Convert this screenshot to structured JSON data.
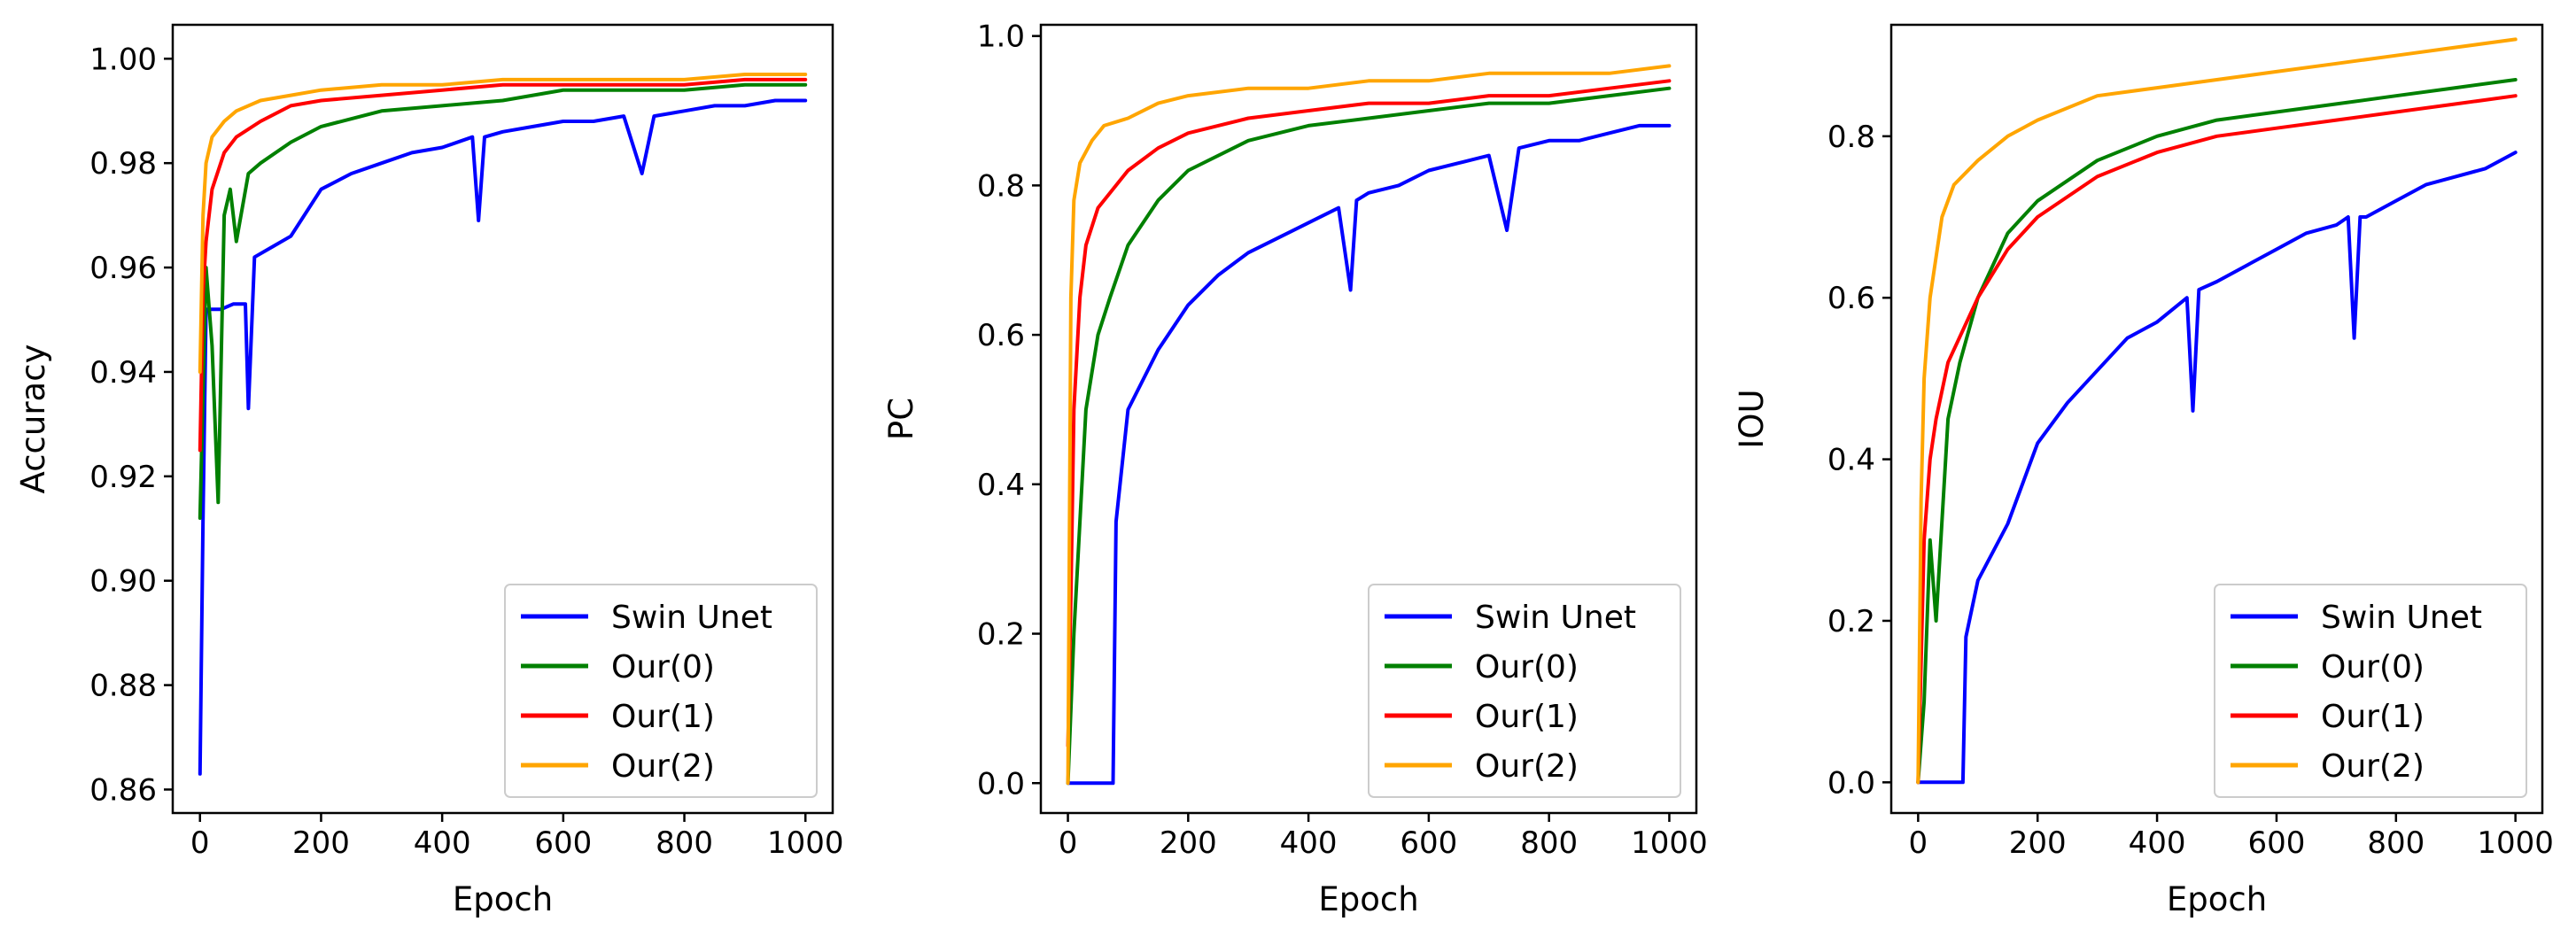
{
  "chart_data": [
    {
      "type": "line",
      "title": "",
      "xlabel": "Epoch",
      "ylabel": "Accuracy",
      "xlim": [
        -45,
        1045
      ],
      "ylim": [
        0.8555,
        1.0065
      ],
      "xticks": [
        0,
        200,
        400,
        600,
        800,
        1000
      ],
      "xtick_labels": [
        "0",
        "200",
        "400",
        "600",
        "800",
        "1000"
      ],
      "yticks": [
        0.86,
        0.88,
        0.9,
        0.92,
        0.94,
        0.96,
        0.98,
        1.0
      ],
      "ytick_labels": [
        "0.86",
        "0.88",
        "0.90",
        "0.92",
        "0.94",
        "0.96",
        "0.98",
        "1.00"
      ],
      "grid": false,
      "legend_loc": "lower-right",
      "series": [
        {
          "name": "Swin Unet",
          "color": "#0000ff",
          "x": [
            0,
            5,
            10,
            20,
            35,
            55,
            75,
            80,
            90,
            120,
            150,
            200,
            250,
            300,
            350,
            400,
            450,
            460,
            470,
            500,
            550,
            600,
            650,
            700,
            730,
            750,
            800,
            850,
            900,
            950,
            1000
          ],
          "y": [
            0.863,
            0.912,
            0.952,
            0.952,
            0.952,
            0.953,
            0.953,
            0.933,
            0.962,
            0.964,
            0.966,
            0.975,
            0.978,
            0.98,
            0.982,
            0.983,
            0.985,
            0.969,
            0.985,
            0.986,
            0.987,
            0.988,
            0.988,
            0.989,
            0.978,
            0.989,
            0.99,
            0.991,
            0.991,
            0.992,
            0.992
          ]
        },
        {
          "name": "Our(0)",
          "color": "#008000",
          "x": [
            0,
            10,
            20,
            30,
            40,
            50,
            60,
            80,
            100,
            150,
            200,
            300,
            400,
            500,
            600,
            700,
            800,
            900,
            1000
          ],
          "y": [
            0.912,
            0.96,
            0.945,
            0.915,
            0.97,
            0.975,
            0.965,
            0.978,
            0.98,
            0.984,
            0.987,
            0.99,
            0.991,
            0.992,
            0.994,
            0.994,
            0.994,
            0.995,
            0.995
          ]
        },
        {
          "name": "Our(1)",
          "color": "#ff0000",
          "x": [
            0,
            5,
            10,
            20,
            40,
            60,
            100,
            150,
            200,
            300,
            400,
            500,
            600,
            700,
            800,
            900,
            1000
          ],
          "y": [
            0.925,
            0.955,
            0.965,
            0.975,
            0.982,
            0.985,
            0.988,
            0.991,
            0.992,
            0.993,
            0.994,
            0.995,
            0.995,
            0.995,
            0.995,
            0.996,
            0.996
          ]
        },
        {
          "name": "Our(2)",
          "color": "#ffa500",
          "x": [
            0,
            5,
            10,
            20,
            40,
            60,
            100,
            150,
            200,
            300,
            400,
            500,
            600,
            700,
            800,
            900,
            1000
          ],
          "y": [
            0.94,
            0.97,
            0.98,
            0.985,
            0.988,
            0.99,
            0.992,
            0.993,
            0.994,
            0.995,
            0.995,
            0.996,
            0.996,
            0.996,
            0.996,
            0.997,
            0.997
          ]
        }
      ]
    },
    {
      "type": "line",
      "title": "",
      "xlabel": "Epoch",
      "ylabel": "PC",
      "xlim": [
        -45,
        1045
      ],
      "ylim": [
        -0.04,
        1.015
      ],
      "xticks": [
        0,
        200,
        400,
        600,
        800,
        1000
      ],
      "xtick_labels": [
        "0",
        "200",
        "400",
        "600",
        "800",
        "1000"
      ],
      "yticks": [
        0.0,
        0.2,
        0.4,
        0.6,
        0.8,
        1.0
      ],
      "ytick_labels": [
        "0.0",
        "0.2",
        "0.4",
        "0.6",
        "0.8",
        "1.0"
      ],
      "grid": false,
      "legend_loc": "lower-right",
      "series": [
        {
          "name": "Swin Unet",
          "color": "#0000ff",
          "x": [
            0,
            10,
            40,
            75,
            80,
            100,
            150,
            200,
            250,
            300,
            350,
            400,
            450,
            470,
            480,
            500,
            550,
            600,
            650,
            700,
            730,
            750,
            800,
            850,
            900,
            950,
            1000
          ],
          "y": [
            0.0,
            0.0,
            0.0,
            0.0,
            0.35,
            0.5,
            0.58,
            0.64,
            0.68,
            0.71,
            0.73,
            0.75,
            0.77,
            0.66,
            0.78,
            0.79,
            0.8,
            0.82,
            0.83,
            0.84,
            0.74,
            0.85,
            0.86,
            0.86,
            0.87,
            0.88,
            0.88
          ]
        },
        {
          "name": "Our(0)",
          "color": "#008000",
          "x": [
            0,
            10,
            20,
            30,
            50,
            70,
            100,
            150,
            200,
            300,
            400,
            500,
            600,
            700,
            800,
            900,
            1000
          ],
          "y": [
            0.0,
            0.2,
            0.35,
            0.5,
            0.6,
            0.65,
            0.72,
            0.78,
            0.82,
            0.86,
            0.88,
            0.89,
            0.9,
            0.91,
            0.91,
            0.92,
            0.93
          ]
        },
        {
          "name": "Our(1)",
          "color": "#ff0000",
          "x": [
            0,
            5,
            10,
            20,
            30,
            50,
            100,
            150,
            200,
            300,
            400,
            500,
            600,
            700,
            800,
            900,
            1000
          ],
          "y": [
            0.05,
            0.25,
            0.5,
            0.65,
            0.72,
            0.77,
            0.82,
            0.85,
            0.87,
            0.89,
            0.9,
            0.91,
            0.91,
            0.92,
            0.92,
            0.93,
            0.94
          ]
        },
        {
          "name": "Our(2)",
          "color": "#ffa500",
          "x": [
            0,
            5,
            10,
            20,
            40,
            60,
            100,
            150,
            200,
            300,
            400,
            500,
            600,
            700,
            800,
            900,
            1000
          ],
          "y": [
            0.0,
            0.65,
            0.78,
            0.83,
            0.86,
            0.88,
            0.89,
            0.91,
            0.92,
            0.93,
            0.93,
            0.94,
            0.94,
            0.95,
            0.95,
            0.95,
            0.96
          ]
        }
      ]
    },
    {
      "type": "line",
      "title": "",
      "xlabel": "Epoch",
      "ylabel": "IOU",
      "xlim": [
        -45,
        1045
      ],
      "ylim": [
        -0.038,
        0.938
      ],
      "xticks": [
        0,
        200,
        400,
        600,
        800,
        1000
      ],
      "xtick_labels": [
        "0",
        "200",
        "400",
        "600",
        "800",
        "1000"
      ],
      "yticks": [
        0.0,
        0.2,
        0.4,
        0.6,
        0.8
      ],
      "ytick_labels": [
        "0.0",
        "0.2",
        "0.4",
        "0.6",
        "0.8"
      ],
      "grid": false,
      "legend_loc": "lower-right",
      "series": [
        {
          "name": "Swin Unet",
          "color": "#0000ff",
          "x": [
            0,
            10,
            40,
            75,
            80,
            100,
            150,
            200,
            250,
            300,
            350,
            400,
            450,
            460,
            470,
            500,
            550,
            600,
            650,
            700,
            720,
            730,
            740,
            750,
            800,
            850,
            900,
            950,
            1000
          ],
          "y": [
            0.0,
            0.0,
            0.0,
            0.0,
            0.18,
            0.25,
            0.32,
            0.42,
            0.47,
            0.51,
            0.55,
            0.57,
            0.6,
            0.46,
            0.61,
            0.62,
            0.64,
            0.66,
            0.68,
            0.69,
            0.7,
            0.55,
            0.7,
            0.7,
            0.72,
            0.74,
            0.75,
            0.76,
            0.78
          ]
        },
        {
          "name": "Our(0)",
          "color": "#008000",
          "x": [
            0,
            10,
            20,
            30,
            50,
            70,
            100,
            150,
            200,
            300,
            400,
            500,
            600,
            700,
            800,
            900,
            1000
          ],
          "y": [
            0.0,
            0.1,
            0.3,
            0.2,
            0.45,
            0.52,
            0.6,
            0.68,
            0.72,
            0.77,
            0.8,
            0.82,
            0.83,
            0.84,
            0.85,
            0.86,
            0.87
          ]
        },
        {
          "name": "Our(1)",
          "color": "#ff0000",
          "x": [
            0,
            5,
            10,
            20,
            30,
            50,
            100,
            150,
            200,
            300,
            400,
            500,
            600,
            700,
            800,
            900,
            1000
          ],
          "y": [
            0.0,
            0.15,
            0.3,
            0.4,
            0.45,
            0.52,
            0.6,
            0.66,
            0.7,
            0.75,
            0.78,
            0.8,
            0.81,
            0.82,
            0.83,
            0.84,
            0.85
          ]
        },
        {
          "name": "Our(2)",
          "color": "#ffa500",
          "x": [
            0,
            5,
            10,
            20,
            40,
            60,
            100,
            150,
            200,
            300,
            400,
            500,
            600,
            700,
            800,
            900,
            1000
          ],
          "y": [
            0.0,
            0.35,
            0.5,
            0.6,
            0.7,
            0.74,
            0.77,
            0.8,
            0.82,
            0.85,
            0.86,
            0.87,
            0.88,
            0.89,
            0.9,
            0.91,
            0.92
          ]
        }
      ]
    }
  ]
}
